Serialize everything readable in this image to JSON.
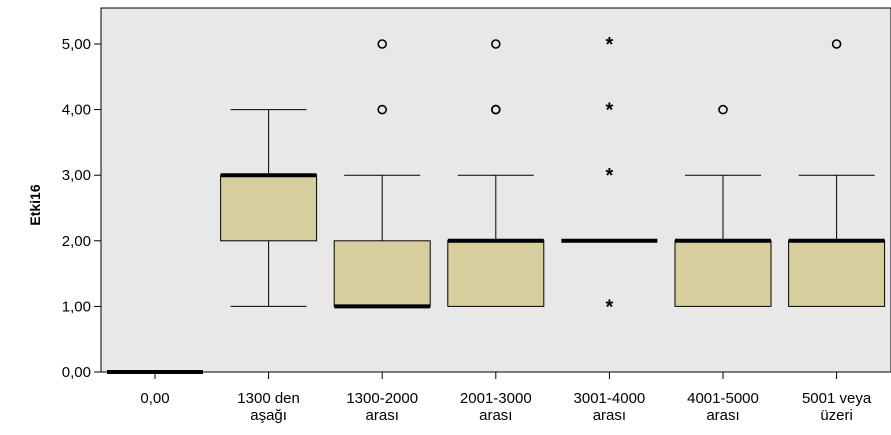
{
  "chart_data": {
    "type": "boxplot",
    "ylabel": "Etki16",
    "xlabel": "",
    "ylim": [
      0,
      5.5
    ],
    "y_ticks": [
      "0,00",
      "1,00",
      "2,00",
      "3,00",
      "4,00",
      "5,00"
    ],
    "y_tick_values": [
      0,
      1,
      2,
      3,
      4,
      5
    ],
    "grid": false,
    "categories": [
      [
        "0,00"
      ],
      [
        "1300 den",
        "aşağı"
      ],
      [
        "1300-2000",
        "arası"
      ],
      [
        "2001-3000",
        "arası"
      ],
      [
        "3001-4000",
        "arası"
      ],
      [
        "4001-5000",
        "arası"
      ],
      [
        "5001 veya",
        "üzeri"
      ]
    ],
    "boxes": [
      {
        "min": 0,
        "q1": 0,
        "median": 0,
        "q3": 0,
        "max": 0,
        "outliers": [],
        "extremes": []
      },
      {
        "min": 1,
        "q1": 2,
        "median": 3,
        "q3": 3,
        "max": 4,
        "outliers": [],
        "extremes": []
      },
      {
        "min": 1,
        "q1": 1,
        "median": 1,
        "q3": 2,
        "max": 3,
        "outliers": [
          4,
          5
        ],
        "extremes": []
      },
      {
        "min": 1,
        "q1": 1,
        "median": 2,
        "q3": 2,
        "max": 3,
        "outliers": [
          4,
          4,
          5
        ],
        "extremes": []
      },
      {
        "min": 2,
        "q1": 2,
        "median": 2,
        "q3": 2,
        "max": 2,
        "outliers": [],
        "extremes": [
          1,
          3,
          4,
          5
        ]
      },
      {
        "min": 1,
        "q1": 1,
        "median": 2,
        "q3": 2,
        "max": 3,
        "outliers": [
          4
        ],
        "extremes": []
      },
      {
        "min": 1,
        "q1": 1,
        "median": 2,
        "q3": 2,
        "max": 3,
        "outliers": [
          5
        ],
        "extremes": []
      }
    ],
    "colors": {
      "plot_background": "#e8e8e8",
      "box_fill": "#d6cf9d",
      "stroke": "#000000",
      "page_background": "#ffffff"
    }
  }
}
